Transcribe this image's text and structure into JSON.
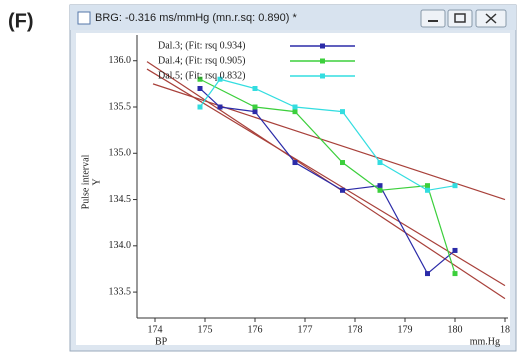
{
  "panel_label": "(F)",
  "window_title": "BRG: -0.316 ms/mmHg (mn.r.sq: 0.890) *",
  "chart_data": {
    "type": "line",
    "ylabel": "Pulse interval",
    "ylabel_unit": "Y",
    "xlabel": "BP",
    "xlabel_unit": "mm.Hg",
    "xlim": [
      173.64,
      181.06
    ],
    "ylim": [
      133.22,
      136.17
    ],
    "xticks": [
      174,
      175,
      176,
      177,
      178,
      179,
      180,
      {
        "value": 181,
        "label": "18"
      }
    ],
    "yticks": [
      {
        "value": 136,
        "label": "136.0"
      },
      135.5,
      {
        "value": 135,
        "label": "135.0"
      },
      134.5,
      {
        "value": 134,
        "label": "134.0"
      },
      133.5
    ],
    "series": [
      {
        "name": "Dal.3; (Fit: rsq 0.934)",
        "color": "#2b2ba8",
        "x": [
          174.9,
          175.3,
          176,
          176.8,
          177.75,
          178.5,
          179.45,
          180
        ],
        "values": [
          135.7,
          135.5,
          135.45,
          134.9,
          134.6,
          134.65,
          133.7,
          133.95
        ]
      },
      {
        "name": "Dal.4; (Fit: rsq 0.905)",
        "color": "#3ccf3c",
        "x": [
          174.9,
          176,
          176.8,
          177.75,
          178.5,
          179.45,
          180
        ],
        "values": [
          135.8,
          135.5,
          135.45,
          134.9,
          134.6,
          134.65,
          133.7
        ]
      },
      {
        "name": "Dal.5; (Fit: rsq 0.832)",
        "color": "#33dde0",
        "x": [
          174.9,
          175.3,
          176,
          176.8,
          177.75,
          178.5,
          179.45,
          180
        ],
        "values": [
          135.5,
          135.8,
          135.7,
          135.5,
          135.45,
          134.9,
          134.6,
          134.65
        ]
      }
    ],
    "fits": [
      {
        "color": "#a8403a",
        "x": [
          173.84,
          181.0
        ],
        "y": [
          135.99,
          133.43
        ]
      },
      {
        "color": "#a8403a",
        "x": [
          173.84,
          181.0
        ],
        "y": [
          135.91,
          133.57
        ]
      },
      {
        "color": "#a8403a",
        "x": [
          173.96,
          181.0
        ],
        "y": [
          135.75,
          134.5
        ]
      }
    ]
  }
}
